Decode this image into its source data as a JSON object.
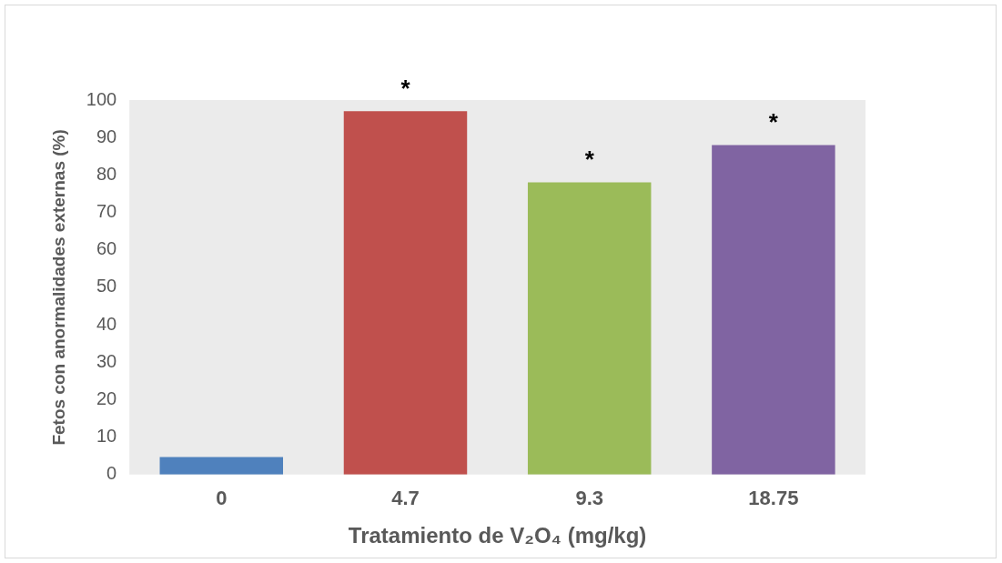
{
  "chart_data": {
    "type": "bar",
    "xlabel": "Tratamiento de V₂O₄ (mg/kg)",
    "ylabel": "Fetos con anormalidades externas (%)",
    "categories": [
      "0",
      "4.7",
      "9.3",
      "18.75"
    ],
    "values": [
      4.7,
      97,
      78,
      88
    ],
    "colors": [
      "#4f81bd",
      "#c0504d",
      "#9bbb59",
      "#8064a2"
    ],
    "ylim": [
      0,
      100
    ],
    "yticks": [
      0,
      10,
      20,
      30,
      40,
      50,
      60,
      70,
      80,
      90,
      100
    ],
    "grid": false,
    "legend": false,
    "annotations": [
      {
        "text": "*",
        "x": "4.7",
        "y": 97
      },
      {
        "text": "*",
        "x": "9.3",
        "y": 78
      },
      {
        "text": "*",
        "x": "18.75",
        "y": 88
      }
    ]
  }
}
